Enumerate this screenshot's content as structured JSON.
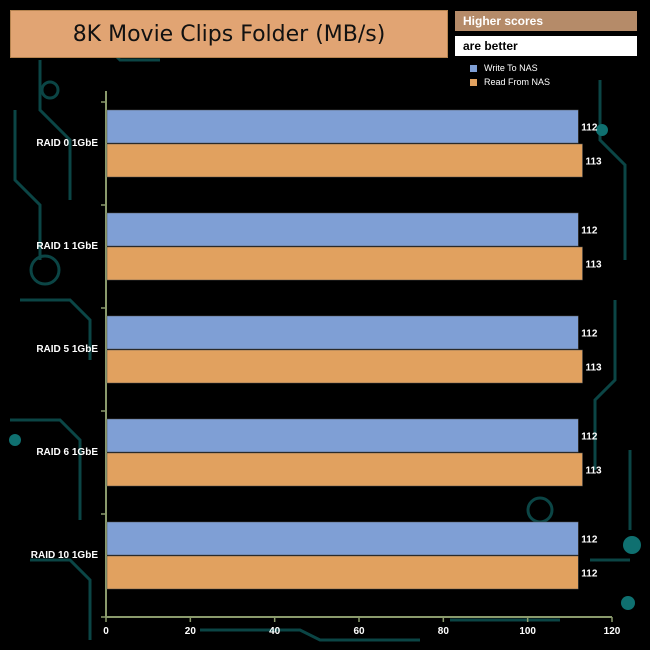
{
  "chart_data": {
    "type": "bar",
    "orientation": "horizontal",
    "title": "8K Movie Clips Folder (MB/s)",
    "note": [
      "Higher scores",
      "are better"
    ],
    "categories": [
      "RAID 0 1GbE",
      "RAID 1 1GbE",
      "RAID 5 1GbE",
      "RAID 6 1GbE",
      "RAID 10 1GbE"
    ],
    "series": [
      {
        "name": "Write To NAS",
        "color": "#7f9fd5",
        "values": [
          112,
          112,
          112,
          112,
          112
        ]
      },
      {
        "name": "Read From NAS",
        "color": "#e1a15f",
        "values": [
          113,
          113,
          113,
          113,
          112
        ]
      }
    ],
    "xlim": [
      0,
      120
    ],
    "xticks": [
      0,
      20,
      40,
      60,
      80,
      100,
      120
    ],
    "xlabel": "",
    "ylabel": "",
    "grid": false,
    "legend_position": "top-right"
  },
  "colors": {
    "background": "#000000",
    "title_box": "#e1a473",
    "note_box": "#b58b69",
    "axis": "#8a9a6c",
    "circuit": "#0f5c5c"
  }
}
